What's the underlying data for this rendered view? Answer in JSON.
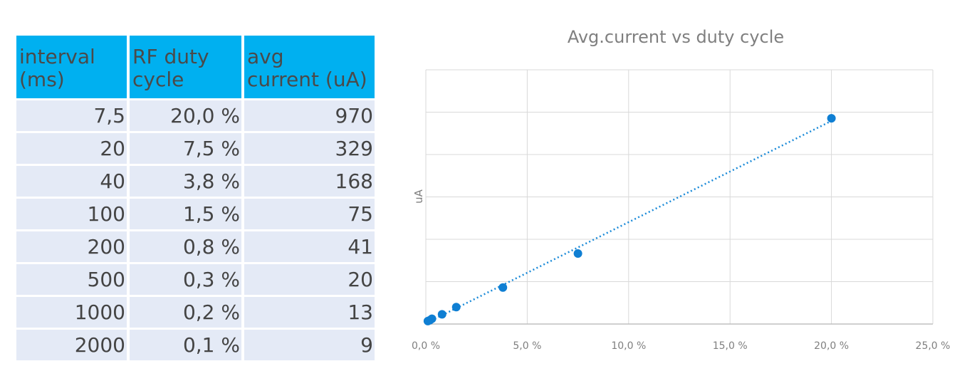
{
  "table": {
    "headers": [
      [
        "interval",
        "(ms)"
      ],
      [
        "RF duty",
        "cycle"
      ],
      [
        "avg",
        "current (uA)"
      ]
    ],
    "rows": [
      [
        "7,5",
        "20,0 %",
        "970"
      ],
      [
        "20",
        "7,5 %",
        "329"
      ],
      [
        "40",
        "3,8 %",
        "168"
      ],
      [
        "100",
        "1,5 %",
        "75"
      ],
      [
        "200",
        "0,8 %",
        "41"
      ],
      [
        "500",
        "0,3 %",
        "20"
      ],
      [
        "1000",
        "0,2 %",
        "13"
      ],
      [
        "2000",
        "0,1 %",
        "9"
      ]
    ],
    "header_color": "#00b0f0",
    "row_color": "#e4eaf6"
  },
  "chart_data": {
    "type": "scatter",
    "title": "Avg.current vs duty cycle",
    "xlabel": "",
    "ylabel": "uA",
    "xlim": [
      0,
      25
    ],
    "ylim": [
      -5,
      1200
    ],
    "x_tick_labels": [
      "0,0 %",
      "5,0 %",
      "10,0 %",
      "15,0 %",
      "20,0 %",
      "25,0 %"
    ],
    "x_ticks": [
      0,
      5,
      10,
      15,
      20,
      25
    ],
    "y_gridlines": true,
    "y_tick_labels_shown": false,
    "trendline": "linear, dotted",
    "series": [
      {
        "x": [
          20.0,
          7.5,
          3.8,
          1.5,
          0.8,
          0.3,
          0.2,
          0.1
        ],
        "y": [
          970,
          329,
          168,
          75,
          41,
          20,
          13,
          9
        ]
      }
    ],
    "marker_color": "#0f7fd3",
    "trend_color": "#1a8ad8"
  }
}
